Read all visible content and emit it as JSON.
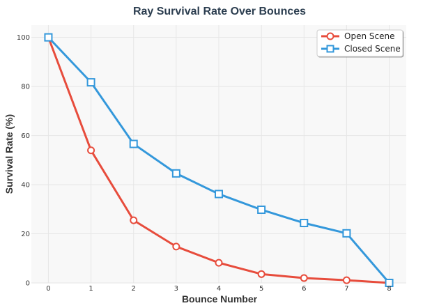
{
  "chart_data": {
    "type": "line",
    "title": "Ray Survival Rate Over Bounces",
    "xlabel": "Bounce Number",
    "ylabel": "Survival Rate (%)",
    "x": [
      0,
      1,
      2,
      3,
      4,
      5,
      6,
      7,
      8
    ],
    "xlim": [
      -0.4,
      8.4
    ],
    "ylim": [
      0,
      105
    ],
    "yticks": [
      0,
      20,
      40,
      60,
      80,
      100
    ],
    "grid": true,
    "legend_position": "top-right",
    "series": [
      {
        "name": "Open Scene",
        "color": "#e74c3c",
        "marker": "circle",
        "values": [
          100,
          54,
          25.5,
          14.8,
          8.2,
          3.6,
          2.0,
          1.1,
          0
        ]
      },
      {
        "name": "Closed Scene",
        "color": "#3498db",
        "marker": "square",
        "values": [
          100,
          81.7,
          56.6,
          44.6,
          36.2,
          29.8,
          24.4,
          20.2,
          0
        ]
      }
    ]
  }
}
